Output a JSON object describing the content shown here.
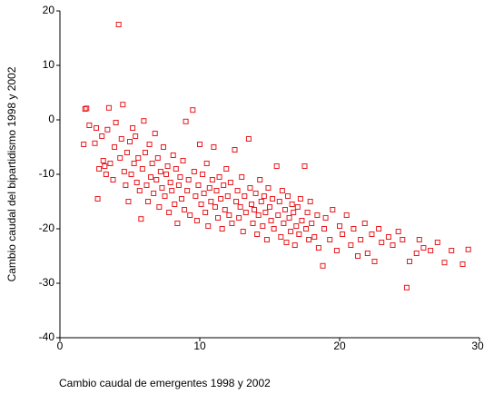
{
  "chart_data": {
    "type": "scatter",
    "x_label": "Cambio caudal de emergentes 1998 y 2002",
    "y_label": "Cambio caudal del bipartidismo 1998 y 2002",
    "color": "#e8191e",
    "xlim": [
      0,
      30
    ],
    "xticks": [
      0,
      10,
      20,
      30
    ],
    "ylim": [
      -40,
      20
    ],
    "yticks": [
      -40,
      -30,
      -20,
      -10,
      0,
      10,
      20
    ],
    "x": [
      1.8,
      1.7,
      1.9,
      2.1,
      2.5,
      2.6,
      2.8,
      2.7,
      3.0,
      3.1,
      3.2,
      3.3,
      3.4,
      3.5,
      3.6,
      3.8,
      3.9,
      4.0,
      4.2,
      4.3,
      4.4,
      4.5,
      4.6,
      4.7,
      4.8,
      4.9,
      5.0,
      5.1,
      5.2,
      5.3,
      5.4,
      5.5,
      5.6,
      5.7,
      5.8,
      5.9,
      6.0,
      6.1,
      6.2,
      6.3,
      6.4,
      6.5,
      6.6,
      6.7,
      6.8,
      6.9,
      7.0,
      7.1,
      7.2,
      7.3,
      7.4,
      7.5,
      7.6,
      7.7,
      7.8,
      7.9,
      8.0,
      8.1,
      8.2,
      8.3,
      8.4,
      8.5,
      8.6,
      8.7,
      8.8,
      8.9,
      9.0,
      9.1,
      9.2,
      9.3,
      9.5,
      9.6,
      9.7,
      9.8,
      9.9,
      10.0,
      10.1,
      10.2,
      10.3,
      10.4,
      10.5,
      10.6,
      10.7,
      10.8,
      10.9,
      11.0,
      11.1,
      11.2,
      11.3,
      11.4,
      11.5,
      11.6,
      11.7,
      11.8,
      11.9,
      12.0,
      12.1,
      12.2,
      12.3,
      12.5,
      12.6,
      12.7,
      12.8,
      12.9,
      13.0,
      13.1,
      13.2,
      13.3,
      13.5,
      13.6,
      13.7,
      13.8,
      13.9,
      14.0,
      14.1,
      14.2,
      14.3,
      14.4,
      14.5,
      14.6,
      14.7,
      14.8,
      14.9,
      15.0,
      15.1,
      15.2,
      15.3,
      15.5,
      15.6,
      15.7,
      15.8,
      15.9,
      16.0,
      16.1,
      16.2,
      16.3,
      16.4,
      16.5,
      16.6,
      16.7,
      16.8,
      16.9,
      17.0,
      17.1,
      17.2,
      17.3,
      17.5,
      17.6,
      17.7,
      17.8,
      17.9,
      18.0,
      18.2,
      18.4,
      18.5,
      18.8,
      18.9,
      19.0,
      19.3,
      19.5,
      19.8,
      20.0,
      20.2,
      20.5,
      20.8,
      21.0,
      21.3,
      21.5,
      21.8,
      22.0,
      22.3,
      22.5,
      22.8,
      23.0,
      23.5,
      23.8,
      24.2,
      24.5,
      24.8,
      25.0,
      25.5,
      25.7,
      26.0,
      26.5,
      27.0,
      27.5,
      28.0,
      28.8,
      29.2
    ],
    "values": [
      2,
      -4.5,
      2.1,
      -1,
      -4.3,
      -1.5,
      -9,
      -14.5,
      -3,
      -7.5,
      -8.5,
      -10,
      -1.8,
      2.2,
      -8,
      -11,
      -5,
      -0.5,
      17.5,
      -7,
      -3.5,
      2.8,
      -9.5,
      -12,
      -6,
      -15,
      -4,
      -10,
      -1.5,
      -8,
      -3,
      -11.5,
      -7,
      -13,
      -18.2,
      -9,
      -0.2,
      -6,
      -12,
      -15,
      -4.5,
      -10.5,
      -8,
      -13.5,
      -2.5,
      -11,
      -7,
      -16,
      -9.5,
      -12.5,
      -5,
      -14,
      -10,
      -8.5,
      -17,
      -11.5,
      -13,
      -6.5,
      -15.5,
      -9,
      -19,
      -12,
      -10.5,
      -14.5,
      -7.5,
      -16.5,
      -0.3,
      -13,
      -11,
      -17.5,
      1.8,
      -9.5,
      -14,
      -18.5,
      -12,
      -4.5,
      -15.5,
      -10,
      -13.5,
      -17,
      -8,
      -19.5,
      -12.5,
      -15,
      -11,
      -5,
      -16,
      -13,
      -18,
      -10.5,
      -14.5,
      -20,
      -12,
      -16.5,
      -9,
      -14,
      -17.5,
      -11.5,
      -19,
      -5.5,
      -15,
      -13,
      -18,
      -16,
      -10.5,
      -20.5,
      -14,
      -17,
      -3.5,
      -12.5,
      -15.5,
      -19,
      -16.5,
      -13.5,
      -21,
      -17.5,
      -11,
      -15,
      -19.5,
      -14,
      -17,
      -22,
      -12.5,
      -16,
      -18.5,
      -14.5,
      -20,
      -8.5,
      -17.5,
      -15,
      -21.5,
      -13,
      -19,
      -16.5,
      -22.5,
      -14,
      -18,
      -20.5,
      -15.5,
      -17,
      -23,
      -19.5,
      -16,
      -21,
      -14.5,
      -18.5,
      -8.5,
      -20,
      -17,
      -22,
      -15,
      -19,
      -21.5,
      -17.5,
      -23.5,
      -26.8,
      -20,
      -18,
      -22,
      -16.5,
      -24,
      -19.5,
      -21,
      -17.5,
      -23,
      -20,
      -25,
      -22,
      -19,
      -24.5,
      -21,
      -26,
      -20,
      -22.5,
      -21.5,
      -23,
      -20.5,
      -22,
      -30.8,
      -26,
      -24.5,
      -22,
      -23.5,
      -24,
      -22.5,
      -26.2,
      -24,
      -26.5,
      -23.8
    ]
  }
}
